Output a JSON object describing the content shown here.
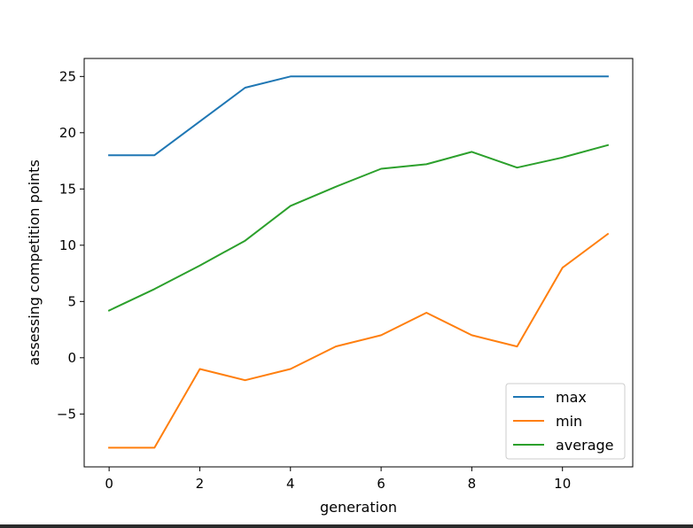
{
  "chart_data": {
    "type": "line",
    "title": "",
    "xlabel": "generation",
    "ylabel": "assessing competition points",
    "xlim": [
      -0.55,
      11.55
    ],
    "ylim": [
      -9.7,
      26.6
    ],
    "xticks": [
      0,
      2,
      4,
      6,
      8,
      10
    ],
    "yticks": [
      -5,
      0,
      5,
      10,
      15,
      20,
      25
    ],
    "ytick_labels": [
      "−5",
      "0",
      "5",
      "10",
      "15",
      "20",
      "25"
    ],
    "grid": false,
    "legend_position": "lower-right",
    "x": [
      0,
      1,
      2,
      3,
      4,
      5,
      6,
      7,
      8,
      9,
      10,
      11
    ],
    "series": [
      {
        "name": "max",
        "color": "#1f77b4",
        "values": [
          18,
          18,
          21,
          24,
          25,
          25,
          25,
          25,
          25,
          25,
          25,
          25
        ]
      },
      {
        "name": "min",
        "color": "#ff7f0e",
        "values": [
          -8,
          -8,
          -1,
          -2,
          -1,
          1,
          2,
          4,
          2,
          1,
          8,
          11
        ]
      },
      {
        "name": "average",
        "color": "#2ca02c",
        "values": [
          4.2,
          6.1,
          8.2,
          10.4,
          13.5,
          15.2,
          16.8,
          17.2,
          18.3,
          16.9,
          17.8,
          18.9
        ]
      }
    ]
  }
}
